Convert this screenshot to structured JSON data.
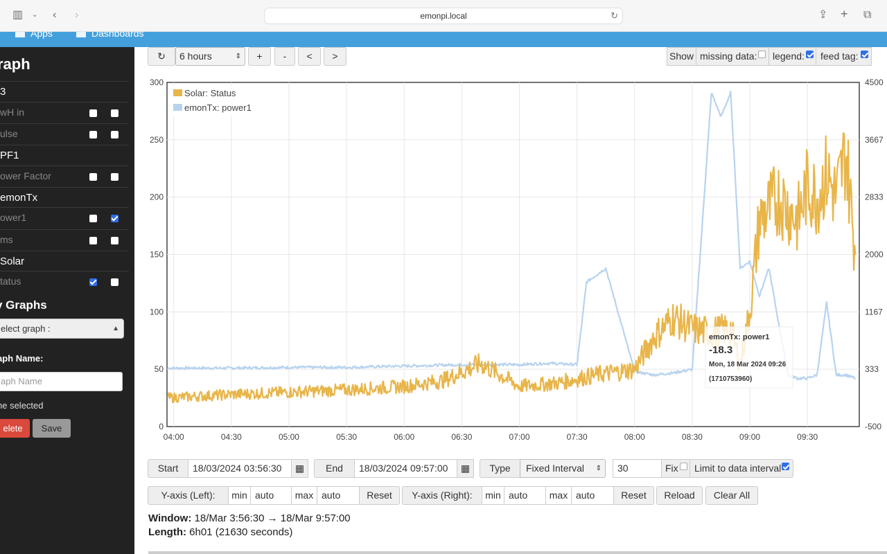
{
  "browser": {
    "url": "emonpi.local"
  },
  "topnav": {
    "apps": "Apps",
    "dashboards": "Dashboards"
  },
  "sidebar": {
    "title": "raph",
    "groups": [
      {
        "name": "3",
        "feeds": [
          {
            "name": "wH in",
            "left": false,
            "right": false
          },
          {
            "name": "ulse",
            "left": false,
            "right": false
          }
        ]
      },
      {
        "name": "PF1",
        "feeds": [
          {
            "name": "ower Factor",
            "left": false,
            "right": false
          }
        ]
      },
      {
        "name": "emonTx",
        "feeds": [
          {
            "name": "ower1",
            "left": false,
            "right": true
          },
          {
            "name": "ms",
            "left": false,
            "right": false
          }
        ]
      },
      {
        "name": "Solar",
        "feeds": [
          {
            "name": "tatus",
            "left": true,
            "right": false
          }
        ]
      }
    ],
    "my_graphs": "y Graphs",
    "select_graph": "elect graph :",
    "graph_name_label": "aph Name:",
    "graph_name_placeholder": "aph Name",
    "none_selected": "ne selected",
    "delete": "elete",
    "save": "Save"
  },
  "toolbar": {
    "refresh_icon": "refresh-icon",
    "range": "6 hours",
    "zoom_in": "+",
    "zoom_out": "-",
    "pan_left": "<",
    "pan_right": ">",
    "show": "Show",
    "missing_data": "missing data:",
    "missing_data_checked": false,
    "legend": "legend:",
    "legend_checked": true,
    "feed_tag": "feed tag:",
    "feed_tag_checked": true
  },
  "chart_data": {
    "type": "line",
    "x_ticks": [
      "04:00",
      "04:30",
      "05:00",
      "05:30",
      "06:00",
      "06:30",
      "07:00",
      "07:30",
      "08:00",
      "08:30",
      "09:00",
      "09:30"
    ],
    "y_left_ticks": [
      "300",
      "250",
      "200",
      "150",
      "100",
      "50",
      "0"
    ],
    "y_right_ticks": [
      "4500",
      "3667",
      "2833",
      "2000",
      "1167",
      "333",
      "-500"
    ],
    "ylim_left": [
      0,
      300
    ],
    "ylim_right": [
      -500,
      4500
    ],
    "grid": true,
    "legend_position": "top-left",
    "series": [
      {
        "name": "Solar: Status",
        "color": "#e8b54a",
        "axis": "left",
        "x": [
          "03:57",
          "04:30",
          "05:00",
          "05:30",
          "06:00",
          "06:20",
          "06:40",
          "07:00",
          "07:20",
          "07:40",
          "08:00",
          "08:10",
          "08:20",
          "08:30",
          "08:40",
          "08:50",
          "08:55",
          "09:00",
          "09:05",
          "09:10",
          "09:15",
          "09:20",
          "09:25",
          "09:30",
          "09:35",
          "09:40",
          "09:45",
          "09:50",
          "09:55"
        ],
        "values": [
          25,
          28,
          30,
          32,
          35,
          40,
          55,
          35,
          38,
          45,
          50,
          78,
          95,
          85,
          82,
          85,
          55,
          100,
          180,
          190,
          200,
          190,
          180,
          210,
          200,
          220,
          200,
          240,
          150
        ]
      },
      {
        "name": "emonTx: power1",
        "color": "#b8d3ee",
        "axis": "right",
        "x": [
          "03:57",
          "04:30",
          "05:00",
          "05:30",
          "06:00",
          "06:30",
          "07:00",
          "07:15",
          "07:30",
          "07:35",
          "07:45",
          "08:00",
          "08:10",
          "08:20",
          "08:30",
          "08:40",
          "08:45",
          "08:50",
          "08:55",
          "09:00",
          "09:05",
          "09:10",
          "09:15",
          "09:20",
          "09:25",
          "09:30",
          "09:35",
          "09:40",
          "09:45",
          "09:50",
          "09:55"
        ],
        "values": [
          350,
          350,
          360,
          360,
          380,
          400,
          400,
          420,
          400,
          1600,
          1800,
          300,
          250,
          280,
          330,
          4350,
          4000,
          4350,
          1800,
          1900,
          1400,
          1800,
          1000,
          250,
          200,
          200,
          250,
          1300,
          250,
          250,
          200
        ]
      }
    ]
  },
  "tooltip": {
    "series": "emonTx: power1",
    "value": "-18.3",
    "date": "Mon, 18 Mar 2024 09:26",
    "timestamp": "(1710753960)"
  },
  "controls": {
    "start_label": "Start",
    "start_value": "18/03/2024 03:56:30",
    "end_label": "End",
    "end_value": "18/03/2024 09:57:00",
    "type_label": "Type",
    "type_value": "Fixed Interval",
    "interval": "30",
    "fix": "Fix",
    "fix_checked": false,
    "limit": "Limit to data interval",
    "limit_checked": true,
    "yaxis_left": "Y-axis (Left):",
    "yaxis_right": "Y-axis (Right):",
    "min": "min",
    "max": "max",
    "left_min": "auto",
    "left_max": "auto",
    "right_min": "auto",
    "right_max": "auto",
    "reset": "Reset",
    "reload": "Reload",
    "clear_all": "Clear All"
  },
  "window_info": {
    "window_label": "Window:",
    "window_value": "18/Mar 3:56:30 → 18/Mar 9:57:00",
    "length_label": "Length:",
    "length_value": "6h01 (21630 seconds)"
  }
}
